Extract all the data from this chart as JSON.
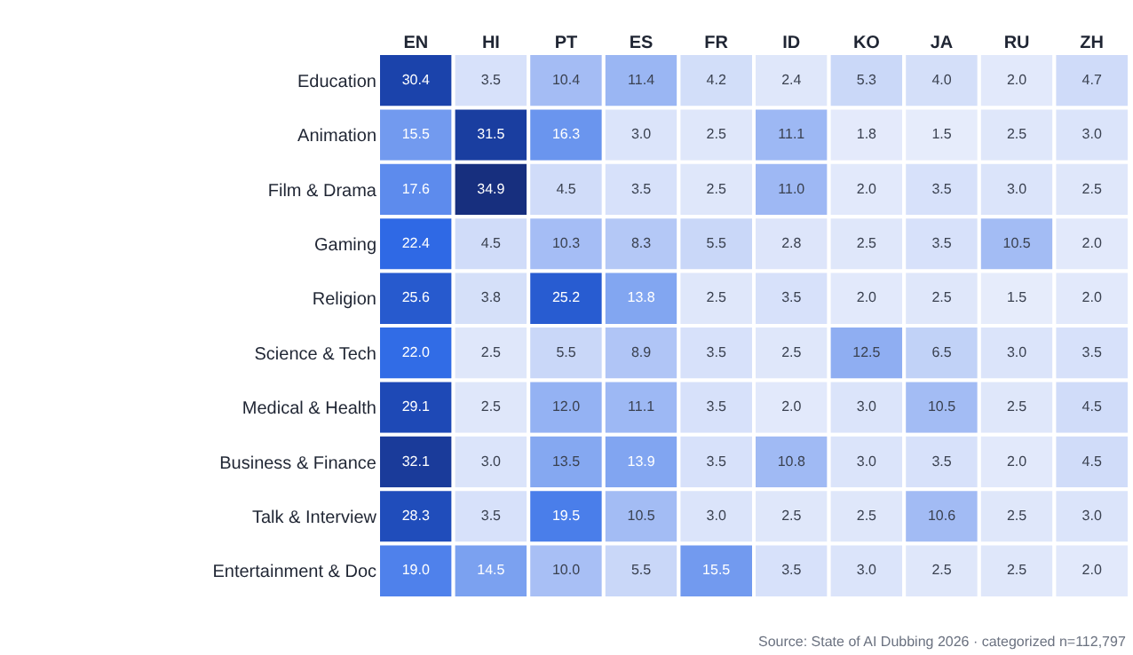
{
  "chart_data": {
    "type": "heatmap",
    "categories": [
      "EN",
      "HI",
      "PT",
      "ES",
      "FR",
      "ID",
      "KO",
      "JA",
      "RU",
      "ZH"
    ],
    "y_categories": [
      "Education",
      "Animation",
      "Film & Drama",
      "Gaming",
      "Religion",
      "Science & Tech",
      "Medical & Health",
      "Business & Finance",
      "Talk & Interview",
      "Entertainment & Doc"
    ],
    "cells": [
      [
        30.4,
        3.5,
        10.4,
        11.4,
        4.2,
        2.4,
        5.3,
        4.0,
        2.0,
        4.7
      ],
      [
        15.5,
        31.5,
        16.3,
        3.0,
        2.5,
        11.1,
        1.8,
        1.5,
        2.5,
        3.0
      ],
      [
        17.6,
        34.9,
        4.5,
        3.5,
        2.5,
        11.0,
        2.0,
        3.5,
        3.0,
        2.5
      ],
      [
        22.4,
        4.5,
        10.3,
        8.3,
        5.5,
        2.8,
        2.5,
        3.5,
        10.5,
        2.0
      ],
      [
        25.6,
        3.8,
        25.2,
        13.8,
        2.5,
        3.5,
        2.0,
        2.5,
        1.5,
        2.0
      ],
      [
        22.0,
        2.5,
        5.5,
        8.9,
        3.5,
        2.5,
        12.5,
        6.5,
        3.0,
        3.5
      ],
      [
        29.1,
        2.5,
        12.0,
        11.1,
        3.5,
        2.0,
        3.0,
        10.5,
        2.5,
        4.5
      ],
      [
        32.1,
        3.0,
        13.5,
        13.9,
        3.5,
        10.8,
        3.0,
        3.5,
        2.0,
        4.5
      ],
      [
        28.3,
        3.5,
        19.5,
        10.5,
        3.0,
        2.5,
        2.5,
        10.6,
        2.5,
        3.0
      ],
      [
        19.0,
        14.5,
        10.0,
        5.5,
        15.5,
        3.5,
        3.0,
        2.5,
        2.5,
        2.0
      ]
    ],
    "cell_labels": [
      [
        "30.4",
        "3.5",
        "10.4",
        "11.4",
        "4.2",
        "2.4",
        "5.3",
        "4.0",
        "2.0",
        "4.7"
      ],
      [
        "15.5",
        "31.5",
        "16.3",
        "3.0",
        "2.5",
        "11.1",
        "1.8",
        "1.5",
        "2.5",
        "3.0"
      ],
      [
        "17.6",
        "34.9",
        "4.5",
        "3.5",
        "2.5",
        "11.0",
        "2.0",
        "3.5",
        "3.0",
        "2.5"
      ],
      [
        "22.4",
        "4.5",
        "10.3",
        "8.3",
        "5.5",
        "2.8",
        "2.5",
        "3.5",
        "10.5",
        "2.0"
      ],
      [
        "25.6",
        "3.8",
        "25.2",
        "13.8",
        "2.5",
        "3.5",
        "2.0",
        "2.5",
        "1.5",
        "2.0"
      ],
      [
        "22.0",
        "2.5",
        "5.5",
        "8.9",
        "3.5",
        "2.5",
        "12.5",
        "6.5",
        "3.0",
        "3.5"
      ],
      [
        "29.1",
        "2.5",
        "12.0",
        "11.1",
        "3.5",
        "2.0",
        "3.0",
        "10.5",
        "2.5",
        "4.5"
      ],
      [
        "32.1",
        "3.0",
        "13.5",
        "13.9",
        "3.5",
        "10.8",
        "3.0",
        "3.5",
        "2.0",
        "4.5"
      ],
      [
        "28.3",
        "3.5",
        "19.5",
        "10.5",
        "3.0",
        "2.5",
        "2.5",
        "10.6",
        "2.5",
        "3.0"
      ],
      [
        "19.0",
        "14.5",
        "10.0",
        "5.5",
        "15.5",
        "3.5",
        "3.0",
        "2.5",
        "2.5",
        "2.0"
      ]
    ],
    "annotations": [
      "Source: State of AI Dubbing 2026 · categorized n=112,797"
    ]
  }
}
